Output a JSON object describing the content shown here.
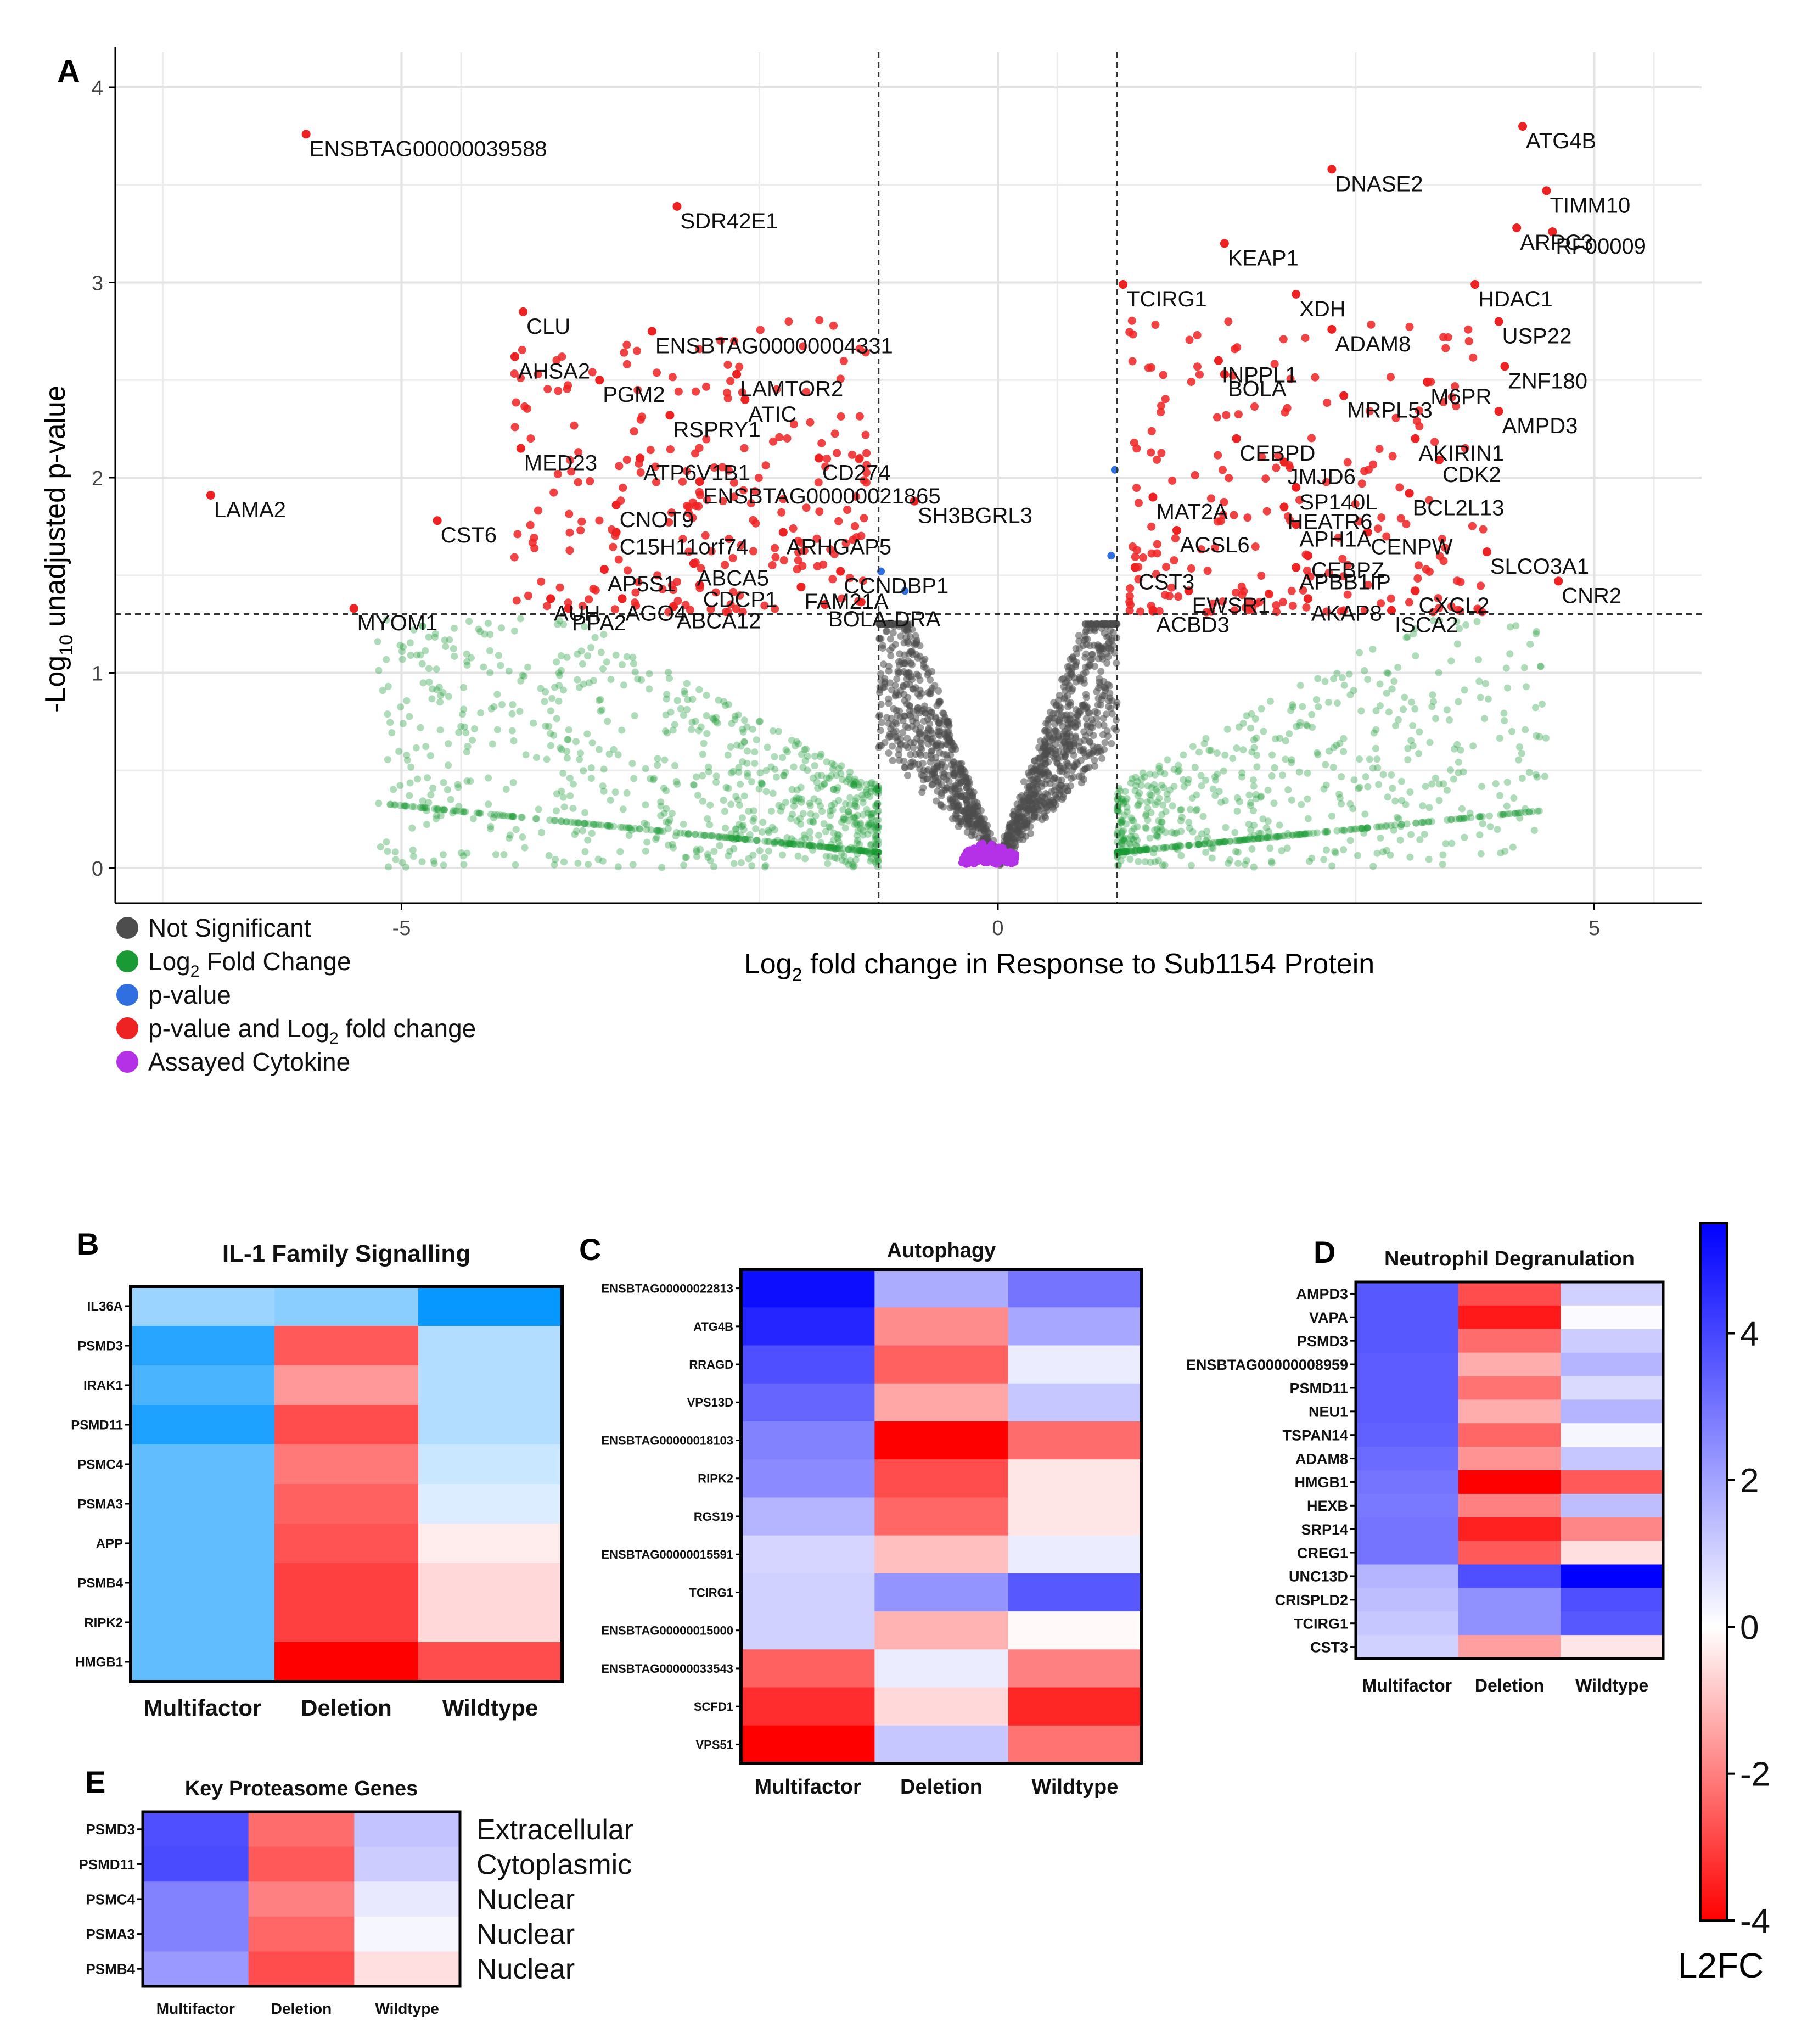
{
  "chart_data": [
    {
      "panel": "A",
      "type": "scatter",
      "subtype": "volcano",
      "xlabel_main": "Log",
      "xlabel_sub": "2",
      "xlabel_rest": " fold change in Response to Sub1154 Protein",
      "ylabel_pre": "-Log",
      "ylabel_sub": "10",
      "ylabel_post": " unadjusted p-value",
      "xlim": [
        -7.4,
        5.9
      ],
      "ylim": [
        -0.18,
        4.18
      ],
      "xticks": [
        -5,
        0,
        5
      ],
      "yticks": [
        0,
        1,
        2,
        3,
        4
      ],
      "thresholds": {
        "x": [
          -1,
          1
        ],
        "y": 1.301
      },
      "colors": {
        "ns": "#4d4d4d",
        "fc": "#1a9a34",
        "p": "#2f6fe0",
        "both": "#ee2222",
        "cyto": "#b431e8"
      },
      "legend": [
        {
          "label": "Not Significant",
          "color": "#4d4d4d"
        },
        {
          "label": "Log",
          "sub": "2",
          "rest": " Fold Change",
          "color": "#1a9a34"
        },
        {
          "label": "p-value",
          "color": "#2f6fe0"
        },
        {
          "label": "p-value and Log",
          "sub": "2",
          "rest": " fold change",
          "color": "#ee2222"
        },
        {
          "label": "Assayed Cytokine",
          "color": "#b431e8"
        }
      ],
      "labeled_points": [
        {
          "g": "ENSBTAG00000039588",
          "x": -5.8,
          "y": 3.76
        },
        {
          "g": "SDR42E1",
          "x": -2.69,
          "y": 3.39
        },
        {
          "g": "CLU",
          "x": -3.98,
          "y": 2.85
        },
        {
          "g": "ENSBTAG00000004331",
          "x": -2.9,
          "y": 2.75
        },
        {
          "g": "AHSA2",
          "x": -4.05,
          "y": 2.62
        },
        {
          "g": "LAMTOR2",
          "x": -2.19,
          "y": 2.53
        },
        {
          "g": "PGM2",
          "x": -3.34,
          "y": 2.5
        },
        {
          "g": "ATIC",
          "x": -2.12,
          "y": 2.4
        },
        {
          "g": "RSPRY1",
          "x": -2.75,
          "y": 2.32
        },
        {
          "g": "MED23",
          "x": -4.0,
          "y": 2.15
        },
        {
          "g": "ATP6V1B1",
          "x": -3.0,
          "y": 2.1
        },
        {
          "g": "CD274",
          "x": -1.5,
          "y": 2.1
        },
        {
          "g": "ENSBTAG00000021865",
          "x": -2.5,
          "y": 1.98
        },
        {
          "g": "LAMA2",
          "x": -6.6,
          "y": 1.91
        },
        {
          "g": "SH3BGRL3",
          "x": -0.7,
          "y": 1.88
        },
        {
          "g": "CNOT9",
          "x": -3.2,
          "y": 1.86
        },
        {
          "g": "CST6",
          "x": -4.7,
          "y": 1.78
        },
        {
          "g": "C15H11orf74",
          "x": -3.2,
          "y": 1.72
        },
        {
          "g": "ARHGAP5",
          "x": -1.8,
          "y": 1.72
        },
        {
          "g": "ABCA5",
          "x": -2.55,
          "y": 1.56
        },
        {
          "g": "AP5S1",
          "x": -3.3,
          "y": 1.53
        },
        {
          "g": "CCNDBP1",
          "x": -1.32,
          "y": 1.52
        },
        {
          "g": "CDCP1",
          "x": -2.5,
          "y": 1.45
        },
        {
          "g": "FAM21A",
          "x": -1.65,
          "y": 1.44
        },
        {
          "g": "AUH",
          "x": -3.75,
          "y": 1.38
        },
        {
          "g": "AGO4",
          "x": -3.15,
          "y": 1.38
        },
        {
          "g": "BOLA-DRA",
          "x": -1.45,
          "y": 1.35
        },
        {
          "g": "ABCA12",
          "x": -2.72,
          "y": 1.34
        },
        {
          "g": "MYOM1",
          "x": -5.4,
          "y": 1.33
        },
        {
          "g": "PPA2",
          "x": -3.6,
          "y": 1.33
        },
        {
          "g": "ATG4B",
          "x": 4.4,
          "y": 3.8
        },
        {
          "g": "DNASE2",
          "x": 2.8,
          "y": 3.58
        },
        {
          "g": "TIMM10",
          "x": 4.6,
          "y": 3.47
        },
        {
          "g": "ARPC3",
          "x": 4.35,
          "y": 3.28
        },
        {
          "g": "RF00009",
          "x": 4.65,
          "y": 3.26
        },
        {
          "g": "KEAP1",
          "x": 1.9,
          "y": 3.2
        },
        {
          "g": "HDAC1",
          "x": 4.0,
          "y": 2.99
        },
        {
          "g": "TCIRG1",
          "x": 1.05,
          "y": 2.99
        },
        {
          "g": "XDH",
          "x": 2.5,
          "y": 2.94
        },
        {
          "g": "USP22",
          "x": 4.2,
          "y": 2.8
        },
        {
          "g": "ADAM8",
          "x": 2.8,
          "y": 2.76
        },
        {
          "g": "INPPL1",
          "x": 1.85,
          "y": 2.6
        },
        {
          "g": "ZNF180",
          "x": 4.25,
          "y": 2.57
        },
        {
          "g": "BOLA",
          "x": 1.9,
          "y": 2.53
        },
        {
          "g": "M6PR",
          "x": 3.6,
          "y": 2.49
        },
        {
          "g": "MRPL53",
          "x": 2.9,
          "y": 2.42
        },
        {
          "g": "AMPD3",
          "x": 4.2,
          "y": 2.34
        },
        {
          "g": "AKIRIN1",
          "x": 3.5,
          "y": 2.2
        },
        {
          "g": "CEBPD",
          "x": 2.0,
          "y": 2.2
        },
        {
          "g": "JMJD6",
          "x": 2.4,
          "y": 2.08
        },
        {
          "g": "CDK2",
          "x": 3.7,
          "y": 2.09
        },
        {
          "g": "SP140L",
          "x": 2.5,
          "y": 1.95
        },
        {
          "g": "BCL2L13",
          "x": 3.45,
          "y": 1.92
        },
        {
          "g": "MAT2A",
          "x": 1.3,
          "y": 1.9
        },
        {
          "g": "HEATR6",
          "x": 2.4,
          "y": 1.85
        },
        {
          "g": "APH1A",
          "x": 2.5,
          "y": 1.76
        },
        {
          "g": "ACSL6",
          "x": 1.5,
          "y": 1.73
        },
        {
          "g": "CENPW",
          "x": 3.1,
          "y": 1.72
        },
        {
          "g": "SLCO3A1",
          "x": 4.1,
          "y": 1.62
        },
        {
          "g": "CEBPZ",
          "x": 2.6,
          "y": 1.6
        },
        {
          "g": "APBB1IP",
          "x": 2.5,
          "y": 1.54
        },
        {
          "g": "CST3",
          "x": 1.15,
          "y": 1.54
        },
        {
          "g": "CNR2",
          "x": 4.7,
          "y": 1.47
        },
        {
          "g": "CXCL2",
          "x": 3.5,
          "y": 1.42
        },
        {
          "g": "EWSR1",
          "x": 1.6,
          "y": 1.42
        },
        {
          "g": "AKAP8",
          "x": 2.6,
          "y": 1.38
        },
        {
          "g": "ISCA2",
          "x": 3.3,
          "y": 1.32
        },
        {
          "g": "ACBD3",
          "x": 1.3,
          "y": 1.32
        }
      ]
    },
    {
      "panel": "B",
      "type": "heatmap",
      "title": "IL-1 Family Signalling",
      "columns": [
        "Multifactor",
        "Deletion",
        "Wildtype"
      ],
      "rows": [
        "IL36A",
        "PSMD3",
        "IRAK1",
        "PSMD11",
        "PSMC4",
        "PSMA3",
        "APP",
        "PSMB4",
        "RIPK2",
        "HMGB1"
      ],
      "values": [
        [
          1.3,
          1.6,
          3.9
        ],
        [
          3.3,
          -2.6,
          0.9
        ],
        [
          2.7,
          -1.6,
          0.9
        ],
        [
          3.5,
          -2.8,
          0.9
        ],
        [
          2.3,
          -2.1,
          0.5
        ],
        [
          2.3,
          -2.5,
          0.2
        ],
        [
          2.3,
          -2.7,
          -0.3
        ],
        [
          2.3,
          -3.0,
          -0.6
        ],
        [
          2.3,
          -3.0,
          -0.6
        ],
        [
          2.3,
          -4.0,
          -2.8
        ]
      ],
      "palette": "sky"
    },
    {
      "panel": "C",
      "type": "heatmap",
      "title": "Autophagy",
      "columns": [
        "Multifactor",
        "Deletion",
        "Wildtype"
      ],
      "rows": [
        "ENSBTAG00000022813",
        "ATG4B",
        "RRAGD",
        "VPS13D",
        "ENSBTAG00000018103",
        "RIPK2",
        "RGS19",
        "ENSBTAG00000015591",
        "TCIRG1",
        "ENSBTAG00000015000",
        "ENSBTAG00000033543",
        "SCFD1",
        "VPS51"
      ],
      "values": [
        [
          5.2,
          1.8,
          3.0
        ],
        [
          4.7,
          -1.8,
          1.9
        ],
        [
          3.8,
          -2.5,
          0.4
        ],
        [
          3.3,
          -1.4,
          1.2
        ],
        [
          2.7,
          -4.0,
          -2.3
        ],
        [
          2.5,
          -2.8,
          -0.4
        ],
        [
          1.6,
          -2.4,
          -0.4
        ],
        [
          0.9,
          -1.0,
          0.4
        ],
        [
          1.0,
          2.3,
          3.6
        ],
        [
          1.0,
          -1.2,
          -0.1
        ],
        [
          -2.5,
          0.4,
          -2.0
        ],
        [
          -3.3,
          -0.6,
          -3.4
        ],
        [
          -4.0,
          1.2,
          -2.2
        ]
      ],
      "palette": "diverging"
    },
    {
      "panel": "D",
      "type": "heatmap",
      "title": "Neutrophil Degranulation",
      "columns": [
        "Multifactor",
        "Deletion",
        "Wildtype"
      ],
      "rows": [
        "AMPD3",
        "VAPA",
        "PSMD3",
        "ENSBTAG00000008959",
        "PSMD11",
        "NEU1",
        "TSPAN14",
        "ADAM8",
        "HMGB1",
        "HEXB",
        "SRP14",
        "CREG1",
        "UNC13D",
        "CRISPLD2",
        "TCIRG1",
        "CST3"
      ],
      "values": [
        [
          3.6,
          -2.8,
          1.0
        ],
        [
          3.6,
          -3.6,
          0.1
        ],
        [
          3.6,
          -2.3,
          1.1
        ],
        [
          3.5,
          -1.3,
          1.6
        ],
        [
          3.5,
          -2.2,
          0.8
        ],
        [
          3.5,
          -1.3,
          1.6
        ],
        [
          3.4,
          -2.4,
          0.2
        ],
        [
          3.2,
          -1.7,
          1.2
        ],
        [
          3.0,
          -4.0,
          -2.6
        ],
        [
          2.9,
          -2.0,
          1.4
        ],
        [
          3.0,
          -3.5,
          -1.9
        ],
        [
          3.0,
          -2.6,
          -0.5
        ],
        [
          1.6,
          3.8,
          5.5
        ],
        [
          1.4,
          2.4,
          3.8
        ],
        [
          1.2,
          2.4,
          3.6
        ],
        [
          1.0,
          -1.5,
          -0.4
        ]
      ],
      "palette": "diverging"
    },
    {
      "panel": "E",
      "type": "heatmap",
      "title": "Key Proteasome Genes",
      "columns": [
        "Multifactor",
        "Deletion",
        "Wildtype"
      ],
      "rows": [
        "PSMD3",
        "PSMD11",
        "PSMC4",
        "PSMA3",
        "PSMB4"
      ],
      "locations": [
        "Extracellular",
        "Cytoplasmic",
        "Nuclear",
        "Nuclear",
        "Nuclear"
      ],
      "values": [
        [
          3.8,
          -2.3,
          1.3
        ],
        [
          3.9,
          -2.6,
          1.1
        ],
        [
          2.7,
          -2.0,
          0.5
        ],
        [
          2.7,
          -2.4,
          0.2
        ],
        [
          2.2,
          -2.8,
          -0.5
        ]
      ],
      "palette": "diverging"
    }
  ],
  "colorbar": {
    "title": "L2FC",
    "ticks": [
      "4",
      "2",
      "0",
      "-2",
      "-4"
    ],
    "tick_values": [
      4,
      2,
      0,
      -2,
      -4
    ],
    "range": [
      -4,
      5.5
    ]
  },
  "panel_letters": [
    "A",
    "B",
    "C",
    "D",
    "E"
  ]
}
